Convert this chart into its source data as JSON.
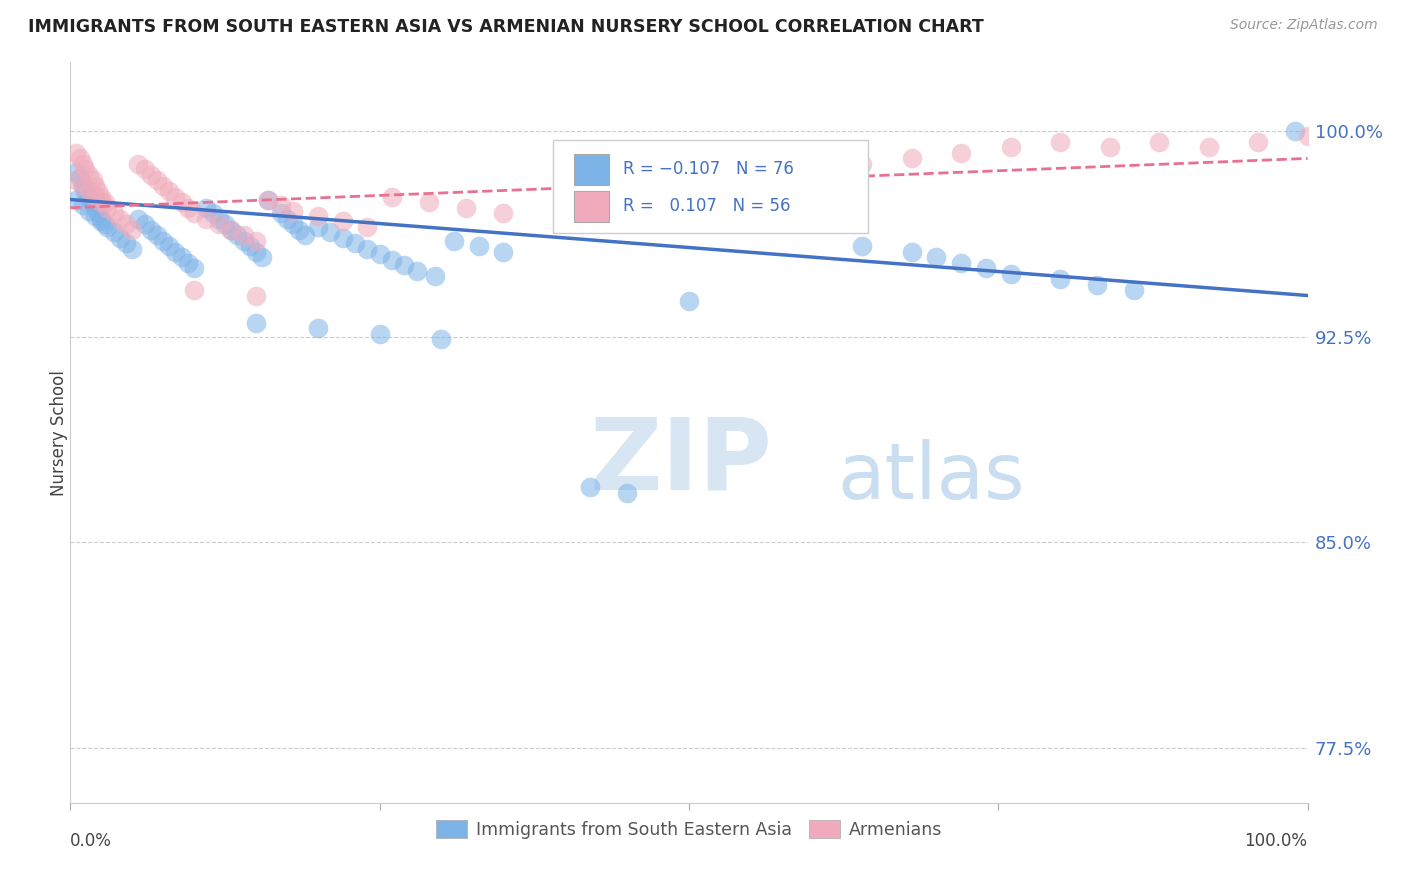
{
  "title": "IMMIGRANTS FROM SOUTH EASTERN ASIA VS ARMENIAN NURSERY SCHOOL CORRELATION CHART",
  "source": "Source: ZipAtlas.com",
  "ylabel": "Nursery School",
  "legend_blue_label": "Immigrants from South Eastern Asia",
  "legend_pink_label": "Armenians",
  "ytick_labels": [
    "77.5%",
    "85.0%",
    "92.5%",
    "100.0%"
  ],
  "ytick_values": [
    0.775,
    0.85,
    0.925,
    1.0
  ],
  "xlim": [
    0.0,
    1.0
  ],
  "ylim": [
    0.755,
    1.025
  ],
  "blue_color": "#7EB3E8",
  "pink_color": "#F0AABB",
  "blue_line_color": "#4472C4",
  "pink_line_color": "#E87090",
  "watermark_zip": "ZIP",
  "watermark_atlas": "atlas",
  "blue_scatter_x": [
    0.005,
    0.008,
    0.01,
    0.012,
    0.015,
    0.018,
    0.02,
    0.022,
    0.025,
    0.028,
    0.005,
    0.01,
    0.015,
    0.02,
    0.025,
    0.03,
    0.035,
    0.04,
    0.045,
    0.05,
    0.055,
    0.06,
    0.065,
    0.07,
    0.075,
    0.08,
    0.085,
    0.09,
    0.095,
    0.1,
    0.11,
    0.115,
    0.12,
    0.125,
    0.13,
    0.135,
    0.14,
    0.145,
    0.15,
    0.155,
    0.16,
    0.17,
    0.175,
    0.18,
    0.185,
    0.19,
    0.2,
    0.21,
    0.22,
    0.23,
    0.24,
    0.25,
    0.26,
    0.27,
    0.28,
    0.295,
    0.31,
    0.33,
    0.35,
    0.15,
    0.2,
    0.25,
    0.3,
    0.42,
    0.45,
    0.5,
    0.64,
    0.68,
    0.7,
    0.72,
    0.74,
    0.76,
    0.8,
    0.83,
    0.86,
    0.99
  ],
  "blue_scatter_y": [
    0.985,
    0.983,
    0.98,
    0.978,
    0.976,
    0.974,
    0.972,
    0.97,
    0.968,
    0.966,
    0.975,
    0.973,
    0.971,
    0.969,
    0.967,
    0.965,
    0.963,
    0.961,
    0.959,
    0.957,
    0.968,
    0.966,
    0.964,
    0.962,
    0.96,
    0.958,
    0.956,
    0.954,
    0.952,
    0.95,
    0.972,
    0.97,
    0.968,
    0.966,
    0.964,
    0.962,
    0.96,
    0.958,
    0.956,
    0.954,
    0.975,
    0.97,
    0.968,
    0.966,
    0.964,
    0.962,
    0.965,
    0.963,
    0.961,
    0.959,
    0.957,
    0.955,
    0.953,
    0.951,
    0.949,
    0.947,
    0.96,
    0.958,
    0.956,
    0.93,
    0.928,
    0.926,
    0.924,
    0.87,
    0.868,
    0.938,
    0.958,
    0.956,
    0.954,
    0.952,
    0.95,
    0.948,
    0.946,
    0.944,
    0.942,
    1.0
  ],
  "pink_scatter_x": [
    0.005,
    0.008,
    0.01,
    0.012,
    0.015,
    0.018,
    0.02,
    0.022,
    0.025,
    0.028,
    0.005,
    0.01,
    0.015,
    0.02,
    0.025,
    0.03,
    0.035,
    0.04,
    0.045,
    0.05,
    0.055,
    0.06,
    0.065,
    0.07,
    0.075,
    0.08,
    0.085,
    0.09,
    0.095,
    0.1,
    0.11,
    0.12,
    0.13,
    0.14,
    0.15,
    0.16,
    0.17,
    0.18,
    0.2,
    0.22,
    0.24,
    0.26,
    0.29,
    0.32,
    0.35,
    0.64,
    0.68,
    0.72,
    0.76,
    0.8,
    0.84,
    0.88,
    0.92,
    0.96,
    1.0,
    0.1,
    0.15
  ],
  "pink_scatter_y": [
    0.992,
    0.99,
    0.988,
    0.986,
    0.984,
    0.982,
    0.98,
    0.978,
    0.976,
    0.974,
    0.982,
    0.98,
    0.978,
    0.976,
    0.974,
    0.972,
    0.97,
    0.968,
    0.966,
    0.964,
    0.988,
    0.986,
    0.984,
    0.982,
    0.98,
    0.978,
    0.976,
    0.974,
    0.972,
    0.97,
    0.968,
    0.966,
    0.964,
    0.962,
    0.96,
    0.975,
    0.973,
    0.971,
    0.969,
    0.967,
    0.965,
    0.976,
    0.974,
    0.972,
    0.97,
    0.988,
    0.99,
    0.992,
    0.994,
    0.996,
    0.994,
    0.996,
    0.994,
    0.996,
    0.998,
    0.942,
    0.94
  ]
}
